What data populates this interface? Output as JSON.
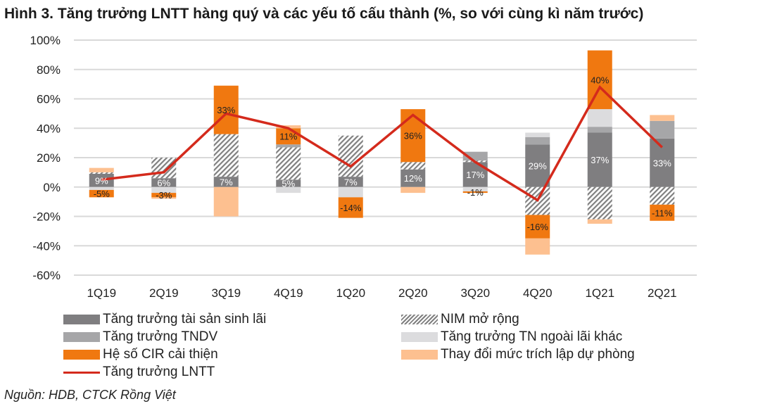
{
  "title": "Hình 3. Tăng trưởng LNTT hàng quý và các yếu tố cấu thành (%, so với cùng kì năm trước)",
  "source": "Nguồn: HDB, CTCK Rồng Việt",
  "chart_data": {
    "type": "bar",
    "stacked": true,
    "title": "Hình 3. Tăng trưởng LNTT hàng quý và các yếu tố cấu thành (%, so với cùng kì năm trước)",
    "categories": [
      "1Q19",
      "2Q19",
      "3Q19",
      "4Q19",
      "1Q20",
      "2Q20",
      "3Q20",
      "4Q20",
      "1Q21",
      "2Q21"
    ],
    "ylim": [
      -60,
      100
    ],
    "yticks": [
      -60,
      -40,
      -20,
      0,
      20,
      40,
      60,
      80,
      100
    ],
    "ytick_labels": [
      "-60%",
      "-40%",
      "-20%",
      "0%",
      "20%",
      "40%",
      "60%",
      "80%",
      "100%"
    ],
    "grid": true,
    "legend_placement": "bottom",
    "series": [
      {
        "name": "Tăng trưởng tài sản sinh lãi",
        "kind": "bar",
        "color": "#7f7e80",
        "values": [
          9,
          6,
          7,
          5,
          7,
          12,
          17,
          29,
          37,
          33
        ],
        "labels": [
          "9%",
          "6%",
          "7%",
          "5%",
          "7%",
          "12%",
          "17%",
          "29%",
          "37%",
          "33%"
        ]
      },
      {
        "name": "NIM mở rộng",
        "kind": "bar",
        "color": "hatch",
        "values": [
          1,
          14,
          29,
          22,
          28,
          5,
          1,
          -19,
          -22,
          -12
        ]
      },
      {
        "name": "Tăng trưởng TNDV",
        "kind": "bar",
        "color": "#a6a6a8",
        "values": [
          0,
          0,
          0,
          2,
          0,
          0,
          6,
          5,
          4,
          12
        ]
      },
      {
        "name": "Tăng trưởng TN ngoài lãi khác",
        "kind": "bar",
        "color": "#dcdcde",
        "values": [
          -2,
          -4,
          0,
          -4,
          -7,
          0,
          -3,
          3,
          12,
          0
        ]
      },
      {
        "name": "Hệ số CIR cải thiện",
        "kind": "bar",
        "color": "#f07810",
        "values": [
          -5,
          -3,
          33,
          11,
          -14,
          36,
          -1,
          -16,
          40,
          -11
        ],
        "labels": [
          "-5%",
          "-3%",
          "33%",
          "11%",
          "-14%",
          "36%",
          "-1%",
          "-16%",
          "40%",
          "-11%"
        ]
      },
      {
        "name": "Thay đổi mức trích lập dự phòng",
        "kind": "bar",
        "color": "#fdc090",
        "values": [
          3,
          -1,
          -20,
          2,
          0,
          -4,
          0,
          -11,
          -3,
          4
        ]
      },
      {
        "name": "Tăng trưởng LNTT",
        "kind": "line",
        "color": "#d42a1c",
        "values": [
          5,
          10,
          50,
          40,
          14,
          49,
          17,
          -9,
          68,
          27
        ]
      }
    ]
  }
}
